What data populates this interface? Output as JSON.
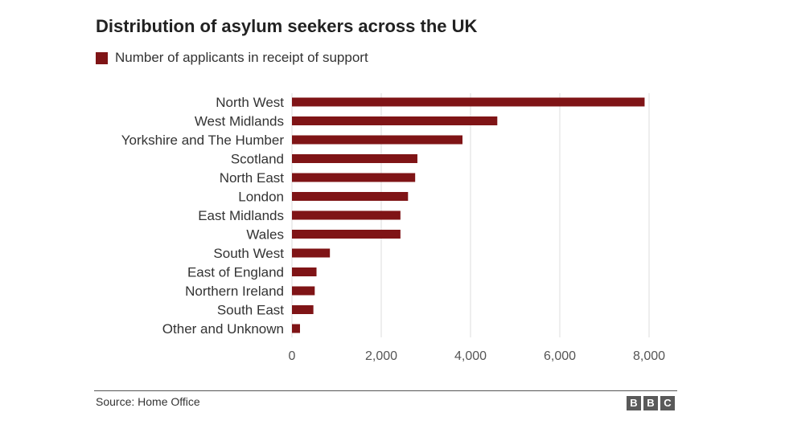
{
  "title": "Distribution of asylum seekers across the UK",
  "source": "Source: Home Office",
  "logo": "BBC",
  "colors": {
    "bar": "#7f1416",
    "grid": "#dcdcdc",
    "axis_text": "#555555",
    "label_text": "#333333"
  },
  "chart_data": {
    "type": "bar",
    "orientation": "horizontal",
    "title": "Distribution of asylum seekers across the UK",
    "xlabel": "",
    "ylabel": "",
    "xlim": [
      0,
      8000
    ],
    "xticks": [
      0,
      2000,
      4000,
      6000,
      8000
    ],
    "xtick_labels": [
      "0",
      "2,000",
      "4,000",
      "6,000",
      "8,000"
    ],
    "grid": "vertical",
    "legend_position": "top-left",
    "categories": [
      "North West",
      "West Midlands",
      "Yorkshire and The Humber",
      "Scotland",
      "North East",
      "London",
      "East Midlands",
      "Wales",
      "South West",
      "East of England",
      "Northern Ireland",
      "South East",
      "Other and Unknown"
    ],
    "series": [
      {
        "name": "Number of applicants in receipt of support",
        "values": [
          7900,
          4600,
          3820,
          2810,
          2760,
          2600,
          2430,
          2430,
          850,
          550,
          510,
          480,
          180
        ]
      }
    ]
  }
}
